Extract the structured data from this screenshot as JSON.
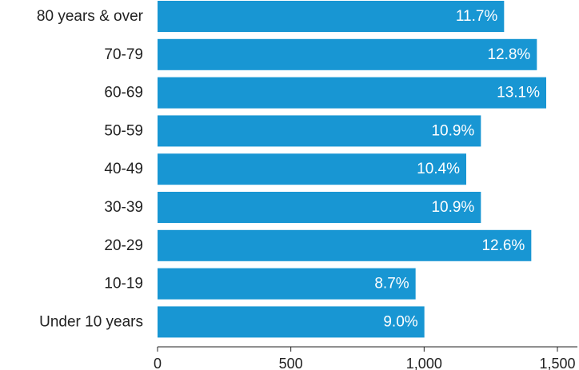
{
  "chart_data": {
    "type": "bar",
    "orientation": "horizontal",
    "categories": [
      "80 years & over",
      "70-79",
      "60-69",
      "50-59",
      "40-49",
      "30-39",
      "20-29",
      "10-19",
      "Under 10 years"
    ],
    "values": [
      1300,
      1423,
      1458,
      1213,
      1158,
      1213,
      1402,
      968,
      1001
    ],
    "data_labels": [
      "11.7%",
      "12.8%",
      "13.1%",
      "10.9%",
      "10.4%",
      "10.9%",
      "12.6%",
      "8.7%",
      "9.0%"
    ],
    "xlim": [
      0,
      1500
    ],
    "x_ticks": [
      0,
      500,
      1000,
      1500
    ],
    "x_tick_labels": [
      "0",
      "500",
      "1,000",
      "1,500"
    ],
    "title": "",
    "xlabel": "",
    "ylabel": "",
    "grid": false,
    "bar_color": "#1896d3",
    "label_color": "#ffffff"
  }
}
